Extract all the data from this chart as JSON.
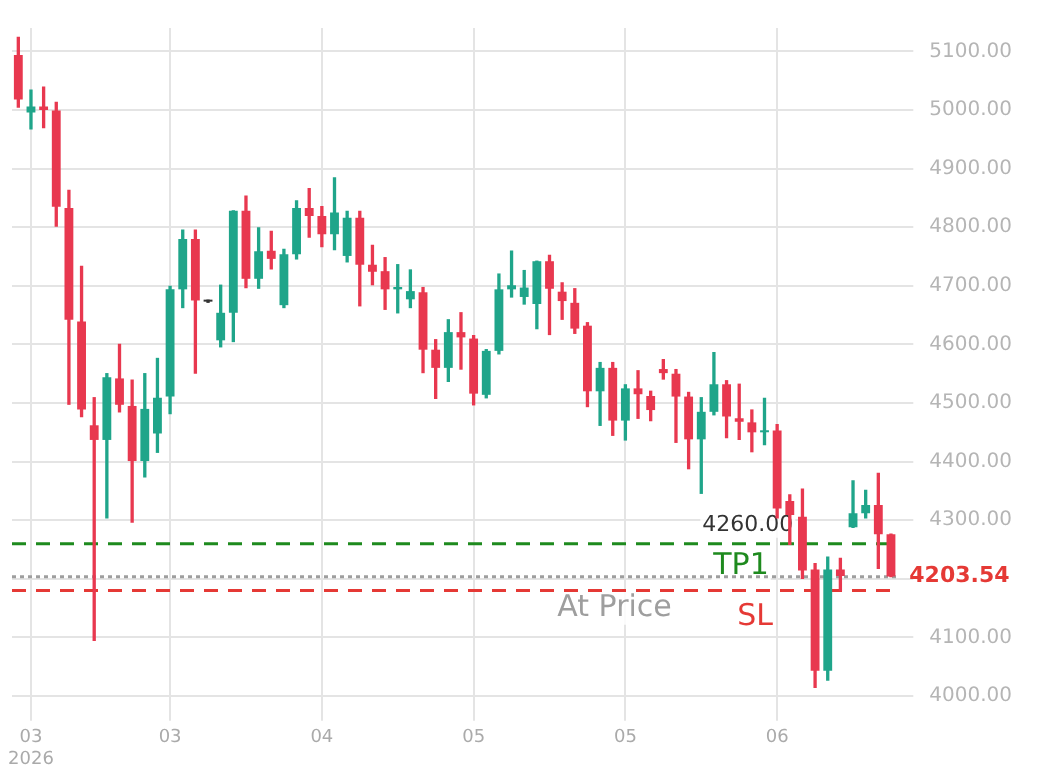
{
  "chart_data": {
    "type": "candlestick",
    "categories": [
      null,
      "03\n2026",
      null,
      null,
      null,
      null,
      null,
      null,
      null,
      null,
      null,
      null,
      "03",
      null,
      null,
      null,
      null,
      null,
      null,
      null,
      null,
      null,
      null,
      null,
      "04",
      null,
      null,
      null,
      null,
      null,
      null,
      null,
      null,
      null,
      null,
      null,
      "05",
      null,
      null,
      null,
      null,
      null,
      null,
      null,
      null,
      null,
      null,
      null,
      "05",
      null,
      null,
      null,
      null,
      null,
      null,
      null,
      null,
      null,
      null,
      null,
      "06",
      null,
      null,
      null,
      null,
      null,
      null,
      null,
      null,
      null
    ],
    "ohlc": [
      [
        5094,
        5124,
        5005,
        5018
      ],
      [
        4996,
        5034,
        4968,
        5006
      ],
      [
        5006,
        5039,
        4970,
        5000
      ],
      [
        4999,
        5013,
        4802,
        4835
      ],
      [
        4833,
        4863,
        4498,
        4642
      ],
      [
        4639,
        4733,
        4477,
        4489
      ],
      [
        4462,
        4509,
        4095,
        4437
      ],
      [
        4437,
        4550,
        4304,
        4544
      ],
      [
        4542,
        4600,
        4485,
        4497
      ],
      [
        4495,
        4539,
        4297,
        4401
      ],
      [
        4401,
        4550,
        4374,
        4490
      ],
      [
        4448,
        4576,
        4416,
        4509
      ],
      [
        4511,
        4699,
        4482,
        4694
      ],
      [
        4694,
        4795,
        4663,
        4780
      ],
      [
        4780,
        4795,
        4551,
        4675
      ],
      [
        4673,
        4675,
        4672,
        4674
      ],
      [
        4607,
        4701,
        4596,
        4654
      ],
      [
        4654,
        4828,
        4605,
        4828
      ],
      [
        4828,
        4853,
        4697,
        4712
      ],
      [
        4712,
        4799,
        4696,
        4759
      ],
      [
        4760,
        4793,
        4729,
        4746
      ],
      [
        4667,
        4762,
        4663,
        4754
      ],
      [
        4754,
        4845,
        4746,
        4833
      ],
      [
        4833,
        4866,
        4783,
        4819
      ],
      [
        4819,
        4835,
        4767,
        4788
      ],
      [
        4788,
        4884,
        4762,
        4825
      ],
      [
        4751,
        4827,
        4741,
        4816
      ],
      [
        4816,
        4827,
        4666,
        4736
      ],
      [
        4736,
        4769,
        4702,
        4724
      ],
      [
        4725,
        4748,
        4660,
        4694
      ],
      [
        4694,
        4736,
        4654,
        4698
      ],
      [
        4677,
        4727,
        4663,
        4691
      ],
      [
        4689,
        4697,
        4552,
        4591
      ],
      [
        4591,
        4608,
        4508,
        4560
      ],
      [
        4560,
        4642,
        4537,
        4621
      ],
      [
        4621,
        4654,
        4558,
        4612
      ],
      [
        4610,
        4615,
        4497,
        4516
      ],
      [
        4514,
        4591,
        4509,
        4589
      ],
      [
        4589,
        4720,
        4584,
        4694
      ],
      [
        4694,
        4759,
        4681,
        4701
      ],
      [
        4681,
        4726,
        4669,
        4697
      ],
      [
        4669,
        4742,
        4627,
        4742
      ],
      [
        4742,
        4752,
        4617,
        4695
      ],
      [
        4690,
        4705,
        4643,
        4674
      ],
      [
        4671,
        4695,
        4619,
        4627
      ],
      [
        4632,
        4637,
        4494,
        4520
      ],
      [
        4520,
        4569,
        4462,
        4560
      ],
      [
        4560,
        4569,
        4445,
        4470
      ],
      [
        4470,
        4531,
        4437,
        4525
      ],
      [
        4525,
        4555,
        4474,
        4515
      ],
      [
        4512,
        4520,
        4470,
        4488
      ],
      [
        4558,
        4574,
        4541,
        4551
      ],
      [
        4550,
        4557,
        4433,
        4511
      ],
      [
        4511,
        4518,
        4388,
        4438
      ],
      [
        4438,
        4509,
        4346,
        4485
      ],
      [
        4485,
        4586,
        4480,
        4532
      ],
      [
        4532,
        4538,
        4441,
        4477
      ],
      [
        4474,
        4532,
        4438,
        4468
      ],
      [
        4467,
        4488,
        4417,
        4450
      ],
      [
        4450,
        4508,
        4429,
        4453
      ],
      [
        4453,
        4463,
        4304,
        4320
      ],
      [
        4333,
        4343,
        4259,
        4309
      ],
      [
        4306,
        4353,
        4201,
        4214
      ],
      [
        4216,
        4226,
        4015,
        4043
      ],
      [
        4043,
        4237,
        4027,
        4216
      ],
      [
        4216,
        4235,
        4180,
        4205
      ],
      [
        4288,
        4367,
        4288,
        4312
      ],
      [
        4312,
        4351,
        4304,
        4326
      ],
      [
        4326,
        4380,
        4218,
        4276
      ],
      [
        4276,
        4276,
        4204,
        4204
      ]
    ],
    "colors": [
      "#e8384f",
      "#1fa58a",
      "#e8384f",
      "#e8384f",
      "#e8384f",
      "#e8384f",
      "#e8384f",
      "#1fa58a",
      "#e8384f",
      "#e8384f",
      "#1fa58a",
      "#1fa58a",
      "#1fa58a",
      "#1fa58a",
      "#e8384f",
      "#333333",
      "#1fa58a",
      "#1fa58a",
      "#e8384f",
      "#1fa58a",
      "#e8384f",
      "#1fa58a",
      "#1fa58a",
      "#e8384f",
      "#e8384f",
      "#1fa58a",
      "#1fa58a",
      "#e8384f",
      "#e8384f",
      "#e8384f",
      "#1fa58a",
      "#1fa58a",
      "#e8384f",
      "#e8384f",
      "#1fa58a",
      "#e8384f",
      "#e8384f",
      "#1fa58a",
      "#1fa58a",
      "#1fa58a",
      "#1fa58a",
      "#1fa58a",
      "#e8384f",
      "#e8384f",
      "#e8384f",
      "#e8384f",
      "#1fa58a",
      "#e8384f",
      "#1fa58a",
      "#e8384f",
      "#e8384f",
      "#e8384f",
      "#e8384f",
      "#e8384f",
      "#1fa58a",
      "#1fa58a",
      "#e8384f",
      "#e8384f",
      "#e8384f",
      "#1fa58a",
      "#e8384f",
      "#e8384f",
      "#e8384f",
      "#e8384f",
      "#1fa58a",
      "#e8384f",
      "#1fa58a",
      "#1fa58a",
      "#e8384f",
      "#e8384f"
    ],
    "ylim": [
      3985,
      5140
    ],
    "yticks": [
      {
        "value": 4000,
        "label": "4000.00"
      },
      {
        "value": 4100,
        "label": "4100.00"
      },
      {
        "value": 4200,
        "label": null
      },
      {
        "value": 4300,
        "label": "4300.00"
      },
      {
        "value": 4400,
        "label": "4400.00"
      },
      {
        "value": 4500,
        "label": "4500.00"
      },
      {
        "value": 4600,
        "label": "4600.00"
      },
      {
        "value": 4700,
        "label": "4700.00"
      },
      {
        "value": 4800,
        "label": "4800.00"
      },
      {
        "value": 4900,
        "label": "4900.00"
      },
      {
        "value": 5000,
        "label": "5000.00"
      },
      {
        "value": 5100,
        "label": "5100.00"
      }
    ],
    "grid": true,
    "ref_lines": [
      {
        "axis": "y",
        "value": 4260,
        "label": "TP1",
        "color": "#1e8a1e",
        "line_style": "dashed"
      },
      {
        "axis": "y",
        "value": 4203.54,
        "label": "At Price",
        "color": "#9e9e9e",
        "line_style": "dotted"
      },
      {
        "axis": "y",
        "value": 4180,
        "label": "SL",
        "color": "#e53935",
        "line_style": "dashed"
      }
    ],
    "annotations": [
      {
        "text": "4260.00",
        "y": 4260
      },
      "4203.54"
    ]
  }
}
